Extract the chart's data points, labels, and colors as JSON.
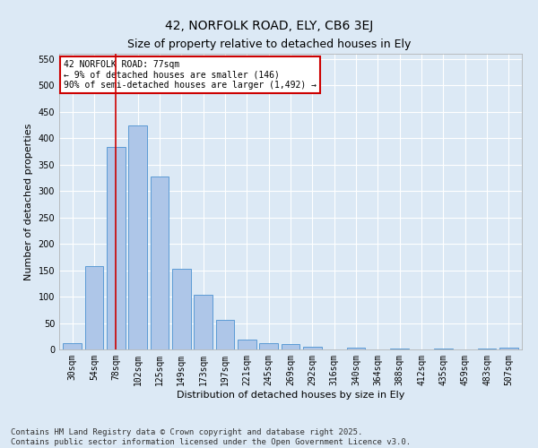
{
  "title": "42, NORFOLK ROAD, ELY, CB6 3EJ",
  "subtitle": "Size of property relative to detached houses in Ely",
  "xlabel": "Distribution of detached houses by size in Ely",
  "ylabel": "Number of detached properties",
  "categories": [
    "30sqm",
    "54sqm",
    "78sqm",
    "102sqm",
    "125sqm",
    "149sqm",
    "173sqm",
    "197sqm",
    "221sqm",
    "245sqm",
    "269sqm",
    "292sqm",
    "316sqm",
    "340sqm",
    "364sqm",
    "388sqm",
    "412sqm",
    "435sqm",
    "459sqm",
    "483sqm",
    "507sqm"
  ],
  "bar_heights": [
    12,
    157,
    383,
    425,
    328,
    153,
    103,
    56,
    18,
    12,
    10,
    5,
    0,
    3,
    0,
    2,
    0,
    2,
    0,
    2,
    3
  ],
  "bar_color": "#aec6e8",
  "bar_edge_color": "#5b9bd5",
  "vline_x": 2,
  "vline_color": "#cc0000",
  "annotation_line1": "42 NORFOLK ROAD: 77sqm",
  "annotation_line2": "← 9% of detached houses are smaller (146)",
  "annotation_line3": "90% of semi-detached houses are larger (1,492) →",
  "annotation_box_color": "#cc0000",
  "annotation_box_bg": "#ffffff",
  "ylim": [
    0,
    560
  ],
  "yticks": [
    0,
    50,
    100,
    150,
    200,
    250,
    300,
    350,
    400,
    450,
    500,
    550
  ],
  "background_color": "#dce9f5",
  "plot_bg_color": "#dce9f5",
  "grid_color": "#ffffff",
  "footnote": "Contains HM Land Registry data © Crown copyright and database right 2025.\nContains public sector information licensed under the Open Government Licence v3.0.",
  "title_fontsize": 10,
  "subtitle_fontsize": 9,
  "xlabel_fontsize": 8,
  "ylabel_fontsize": 8,
  "tick_fontsize": 7,
  "annot_fontsize": 7,
  "footnote_fontsize": 6.5
}
